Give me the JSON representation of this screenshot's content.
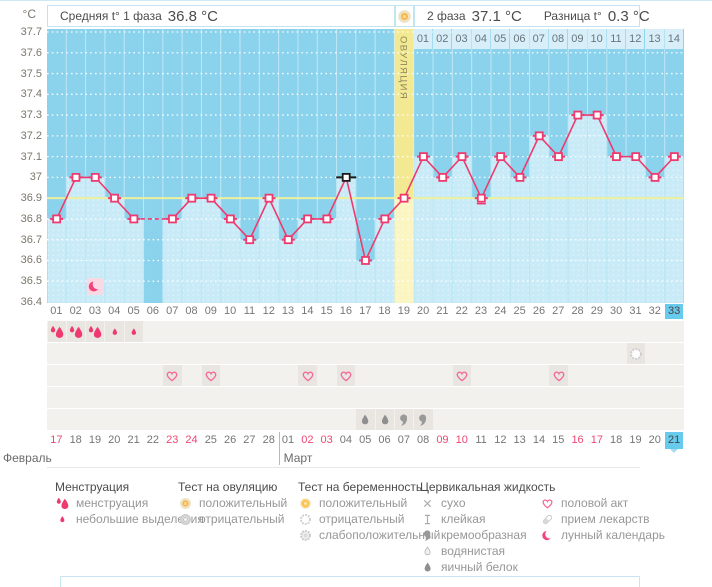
{
  "header": {
    "unit_label": "°C",
    "phase1_label": "Средняя t° 1 фаза",
    "phase1_value": "36.8 °C",
    "phase2_label": "2 фаза",
    "phase2_value": "37.1 °C",
    "diff_label": "Разница t°",
    "diff_value": "0.3 °C",
    "ovulation_label": "ОВУЛЯЦИЯ"
  },
  "chart_data": {
    "type": "line",
    "title": "Basal body temperature cycle chart",
    "ylabel": "°C",
    "ylim": [
      36.4,
      37.7
    ],
    "ytick_step": 0.1,
    "grid": "dotted-horizontal",
    "day_labels": [
      "01",
      "02",
      "03",
      "04",
      "05",
      "06",
      "07",
      "08",
      "09",
      "10",
      "11",
      "12",
      "13",
      "14",
      "15",
      "16",
      "17",
      "18",
      "19",
      "20",
      "21",
      "22",
      "23",
      "24",
      "25",
      "26",
      "27",
      "28",
      "29",
      "30",
      "31",
      "32",
      "33"
    ],
    "temperatures_c": [
      36.8,
      37.0,
      37.0,
      36.9,
      36.8,
      null,
      36.8,
      36.9,
      36.9,
      36.8,
      36.7,
      36.9,
      36.7,
      36.8,
      36.8,
      37.0,
      36.6,
      36.8,
      36.9,
      37.1,
      37.0,
      37.1,
      36.9,
      37.1,
      37.0,
      37.2,
      37.1,
      37.3,
      37.3,
      37.1,
      37.1,
      37.0,
      37.1
    ],
    "coverline_c": 36.9,
    "ovulation_day": 19,
    "selected_day": 16,
    "today_day": 33,
    "missing_days": [
      6
    ],
    "note_dash_day": 23,
    "lunar_marker_day": 3,
    "phase2_day_labels": [
      "01",
      "02",
      "03",
      "04",
      "05",
      "06",
      "07",
      "08",
      "09",
      "10",
      "11",
      "12",
      "13",
      "14"
    ],
    "phase1_avg_c": 36.8,
    "phase2_avg_c": 37.1,
    "phase_diff_c": 0.3
  },
  "day_rows": [
    {
      "id": "menstruation-row",
      "cells": [
        {
          "day": 1,
          "icon": "menstruation-heavy"
        },
        {
          "day": 2,
          "icon": "menstruation-heavy"
        },
        {
          "day": 3,
          "icon": "menstruation-heavy"
        },
        {
          "day": 4,
          "icon": "menstruation-light"
        },
        {
          "day": 5,
          "icon": "menstruation-light"
        }
      ]
    },
    {
      "id": "pregnancy-test-row",
      "cells": [
        {
          "day": 31,
          "icon": "pregnancy-test-negative"
        }
      ]
    },
    {
      "id": "intercourse-row",
      "cells": [
        {
          "day": 7,
          "icon": "intercourse"
        },
        {
          "day": 9,
          "icon": "intercourse"
        },
        {
          "day": 14,
          "icon": "intercourse"
        },
        {
          "day": 16,
          "icon": "intercourse"
        },
        {
          "day": 22,
          "icon": "intercourse"
        },
        {
          "day": 27,
          "icon": "intercourse"
        }
      ]
    },
    {
      "id": "medication-row",
      "cells": []
    },
    {
      "id": "cervical-fluid-row",
      "cells": [
        {
          "day": 17,
          "icon": "fluid-eggwhite"
        },
        {
          "day": 18,
          "icon": "fluid-eggwhite"
        },
        {
          "day": 19,
          "icon": "fluid-creamy"
        },
        {
          "day": 20,
          "icon": "fluid-creamy"
        }
      ]
    }
  ],
  "dates": {
    "labels": [
      "17",
      "18",
      "19",
      "20",
      "21",
      "22",
      "23",
      "24",
      "25",
      "26",
      "27",
      "28",
      "01",
      "02",
      "03",
      "04",
      "05",
      "06",
      "07",
      "08",
      "09",
      "10",
      "11",
      "12",
      "13",
      "14",
      "15",
      "16",
      "17",
      "18",
      "19",
      "20",
      "21"
    ],
    "weekend_indices": [
      0,
      6,
      7,
      13,
      14,
      20,
      21,
      27,
      28
    ],
    "today_index": 32,
    "months": [
      {
        "label": "Февраль",
        "start_index": 0
      },
      {
        "label": "Март",
        "start_index": 12
      }
    ]
  },
  "legend": {
    "sections": [
      {
        "title": "Менструация",
        "items": [
          {
            "icon": "menstruation-heavy",
            "label": "менструация"
          },
          {
            "icon": "menstruation-light",
            "label": "небольшие выделения"
          }
        ]
      },
      {
        "title": "Тест на овуляцию",
        "items": [
          {
            "icon": "ovulation-test-positive",
            "label": "положительный"
          },
          {
            "icon": "ovulation-test-negative",
            "label": "отрицательный"
          }
        ]
      },
      {
        "title": "Тест на беременность",
        "items": [
          {
            "icon": "pregnancy-test-positive",
            "label": "положительный"
          },
          {
            "icon": "pregnancy-test-negative",
            "label": "отрицательный"
          },
          {
            "icon": "pregnancy-test-weak-positive",
            "label": "слабоположительный"
          }
        ]
      },
      {
        "title": "Цервикальная жидкость",
        "items": [
          {
            "icon": "fluid-dry",
            "label": "сухо"
          },
          {
            "icon": "fluid-sticky",
            "label": "клейкая"
          },
          {
            "icon": "fluid-creamy",
            "label": "кремообразная"
          },
          {
            "icon": "fluid-watery",
            "label": "водянистая"
          },
          {
            "icon": "fluid-eggwhite",
            "label": "яичный белок"
          }
        ]
      },
      {
        "title": "",
        "items": [
          {
            "icon": "intercourse",
            "label": "половой акт"
          },
          {
            "icon": "medication",
            "label": "прием лекарств"
          },
          {
            "icon": "lunar-calendar",
            "label": "лунный календарь"
          }
        ]
      }
    ]
  },
  "colors": {
    "accent_pink": "#ee3a6e",
    "weekend_pink": "#ee4672",
    "chart_bg": "#8bd3ed",
    "column_fill": "#c9ebf7",
    "ovulation_band": "#f3e992",
    "ovulation_fill": "#fbf5c2",
    "coverline": "#edf09c",
    "phase2_strip": "#d8effa",
    "today_highlight": "#68cbee",
    "selected_marker": "#1a1a1a",
    "ovulation_text": "#8e885a",
    "orange_positive": "#fbb23f"
  }
}
